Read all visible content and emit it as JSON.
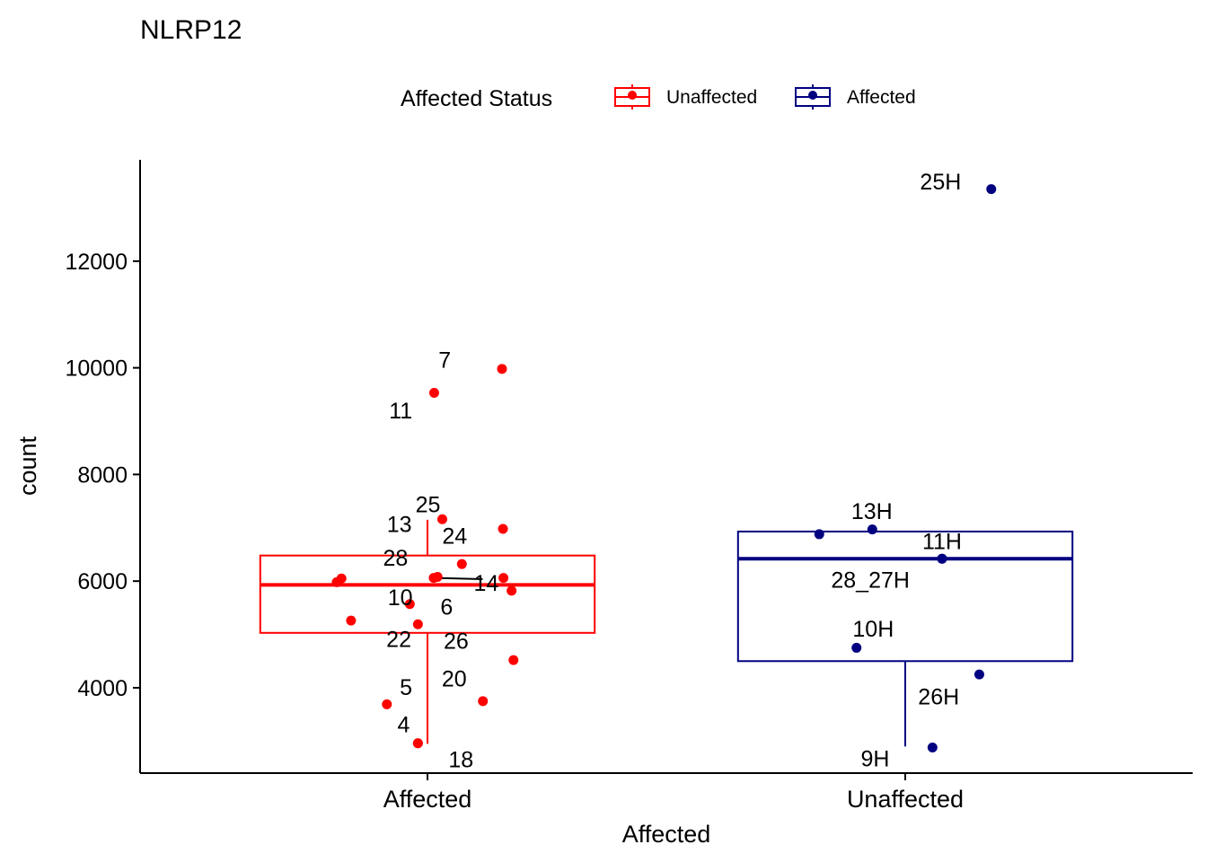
{
  "chart_data": {
    "type": "box",
    "title": "NLRP12",
    "xlabel": "Affected",
    "ylabel": "count",
    "categories": [
      "Affected",
      "Unaffected"
    ],
    "ylim": [
      2400,
      13900
    ],
    "yticks": [
      4000,
      6000,
      8000,
      10000,
      12000
    ],
    "legend": {
      "title": "Affected Status",
      "position": "top",
      "entries": [
        {
          "name": "Unaffected",
          "color": "#ff0000"
        },
        {
          "name": "Affected",
          "color": "#000080"
        }
      ]
    },
    "boxes": [
      {
        "category": "Affected",
        "color": "#ff0000",
        "q1": 5030,
        "median": 5930,
        "q3": 6480,
        "whisker_low": 2950,
        "whisker_high": 7150
      },
      {
        "category": "Unaffected",
        "color": "#000080",
        "q1": 4500,
        "median": 6420,
        "q3": 6930,
        "whisker_low": 2900,
        "whisker_high": 6930
      }
    ],
    "points": [
      {
        "category": "Affected",
        "jitter": 0.156,
        "y": 9980,
        "label": "7",
        "dx": -0.12,
        "dy": 175
      },
      {
        "category": "Affected",
        "jitter": 0.014,
        "y": 9530,
        "label": "11",
        "dx": -0.07,
        "dy": -330
      },
      {
        "category": "Affected",
        "jitter": 0.031,
        "y": 7160,
        "label": "25",
        "dx": -0.03,
        "dy": 280
      },
      {
        "category": "Affected",
        "jitter": 0.158,
        "y": 6980,
        "label": "",
        "dx": 0,
        "dy": 0
      },
      {
        "category": "Affected",
        "jitter": 0.021,
        "y": 6080,
        "label": "13",
        "dx": -0.08,
        "dy": 990
      },
      {
        "category": "Affected",
        "jitter": 0.072,
        "y": 6320,
        "label": "24",
        "dx": -0.015,
        "dy": 530
      },
      {
        "category": "Affected",
        "jitter": 0.013,
        "y": 6060,
        "label": "28",
        "dx": -0.08,
        "dy": 380
      },
      {
        "category": "Affected",
        "jitter": 0.159,
        "y": 6060,
        "label": "14",
        "dx": -0.036,
        "dy": -90
      },
      {
        "category": "Affected",
        "jitter": -0.18,
        "y": 6050,
        "label": "",
        "dx": 0,
        "dy": 0
      },
      {
        "category": "Affected",
        "jitter": 0.176,
        "y": 5820,
        "label": "",
        "dx": 0,
        "dy": 0
      },
      {
        "category": "Affected",
        "jitter": -0.037,
        "y": 5570,
        "label": "10",
        "dx": -0.02,
        "dy": 130
      },
      {
        "category": "Affected",
        "jitter": -0.02,
        "y": 5190,
        "label": "6",
        "dx": 0.06,
        "dy": 330
      },
      {
        "category": "Affected",
        "jitter": -0.16,
        "y": 5260,
        "label": "",
        "dx": 0,
        "dy": 0
      },
      {
        "category": "Affected",
        "jitter": -0.19,
        "y": 5980,
        "label": "22",
        "dx": 0.13,
        "dy": -1060
      },
      {
        "category": "Affected",
        "jitter": 0.18,
        "y": 4520,
        "label": "26",
        "dx": -0.12,
        "dy": 360
      },
      {
        "category": "Affected",
        "jitter": 0.116,
        "y": 3750,
        "label": "20",
        "dx": -0.06,
        "dy": 430
      },
      {
        "category": "Affected",
        "jitter": -0.085,
        "y": 3690,
        "label": "5",
        "dx": 0.04,
        "dy": 330
      },
      {
        "category": "Affected",
        "jitter": -0.02,
        "y": 2960,
        "label": "4",
        "dx": -0.03,
        "dy": 360
      },
      {
        "category": "Affected",
        "jitter": -0.02,
        "y": 2960,
        "label": "18",
        "dx": 0.09,
        "dy": -300
      },
      {
        "category": "Unaffected",
        "jitter": 0.18,
        "y": 13350,
        "label": "25H",
        "dx": -0.106,
        "dy": 150
      },
      {
        "category": "Unaffected",
        "jitter": -0.18,
        "y": 6880,
        "label": "",
        "dx": 0,
        "dy": 0
      },
      {
        "category": "Unaffected",
        "jitter": -0.069,
        "y": 6970,
        "label": "13H",
        "dx": -0.001,
        "dy": 350
      },
      {
        "category": "Unaffected",
        "jitter": 0.077,
        "y": 6420,
        "label": "11H",
        "dx": 0,
        "dy": 330
      },
      {
        "category": "Unaffected",
        "jitter": 0.077,
        "y": 6420,
        "label": "28_27H",
        "dx": -0.15,
        "dy": -390
      },
      {
        "category": "Unaffected",
        "jitter": -0.102,
        "y": 4750,
        "label": "10H",
        "dx": 0.035,
        "dy": 360
      },
      {
        "category": "Unaffected",
        "jitter": 0.155,
        "y": 4250,
        "label": "26H",
        "dx": -0.085,
        "dy": -410
      },
      {
        "category": "Unaffected",
        "jitter": 0.057,
        "y": 2880,
        "label": "9H",
        "dx": -0.12,
        "dy": -200
      }
    ]
  }
}
